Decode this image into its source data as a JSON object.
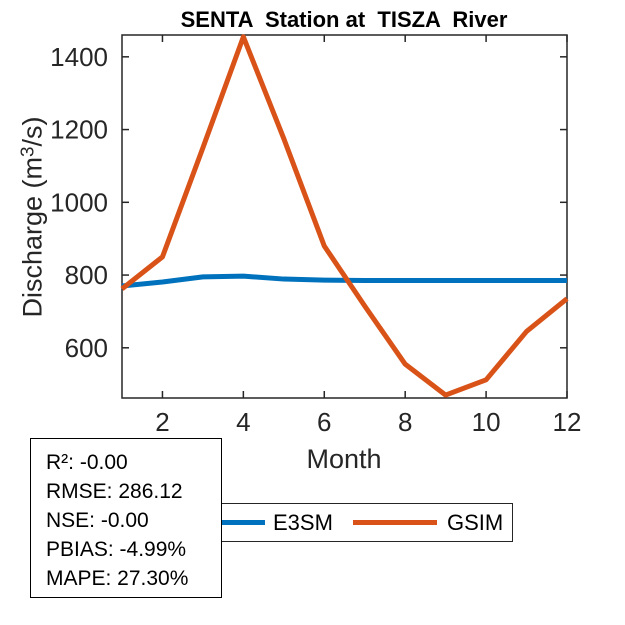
{
  "colors": {
    "background": "#FFFFFF",
    "axis": "#262626",
    "tick_text": "#262626",
    "title_text": "#000000",
    "e3sm_blue": "#0072BD",
    "gsim_orange": "#D95319"
  },
  "labels": {
    "ylabel_pre": "Discharge (m",
    "ylabel_sup": "3",
    "ylabel_post": "/s)"
  },
  "stats": {
    "lines": [
      "R²: -0.00",
      "RMSE: 286.12",
      "NSE: -0.00",
      "PBIAS: -4.99%",
      "MAPE: 27.30%"
    ]
  },
  "chart_data": {
    "type": "line",
    "title": "SENTA  Station at  TISZA  River",
    "xlabel": "Month",
    "ylabel": "Discharge (m³/s)",
    "x": [
      1,
      2,
      3,
      4,
      5,
      6,
      7,
      8,
      9,
      10,
      11,
      12
    ],
    "series": [
      {
        "name": "E3SM",
        "color": "#0072BD",
        "values": [
          770,
          781,
          795,
          797,
          789,
          786,
          785,
          785,
          785,
          785,
          785,
          785
        ]
      },
      {
        "name": "GSIM",
        "color": "#D95319",
        "values": [
          762,
          850,
          1150,
          1455,
          1175,
          880,
          715,
          555,
          470,
          512,
          645,
          735
        ]
      }
    ],
    "xlim": [
      1,
      12
    ],
    "ylim": [
      462,
      1460
    ],
    "xticks": [
      2,
      4,
      6,
      8,
      10,
      12
    ],
    "yticks": [
      600,
      800,
      1000,
      1200,
      1400
    ],
    "grid": false,
    "legend_position": "below",
    "tick_direction": "in",
    "box": true
  }
}
